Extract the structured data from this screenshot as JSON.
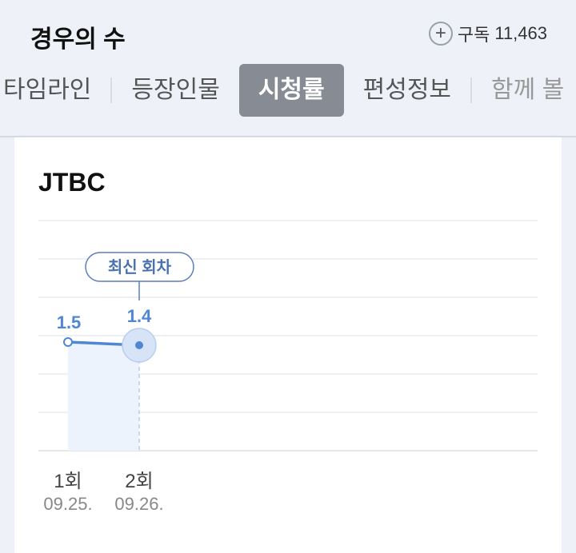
{
  "header": {
    "title": "경우의 수",
    "subscribe_label": "구독",
    "subscriber_count": "11,463",
    "subscribe_icon": "plus-circle-icon"
  },
  "tabs": [
    {
      "label": "타임라인"
    },
    {
      "label": "등장인물"
    },
    {
      "label": "시청률",
      "active": true
    },
    {
      "label": "편성정보"
    },
    {
      "label": "함께 볼"
    }
  ],
  "card": {
    "station": "JTBC",
    "latest_badge": "최신 회차"
  },
  "colors": {
    "accent": "#4f86d6",
    "active_tab": "#878b93",
    "background": "#eef2f8"
  },
  "chart_data": {
    "type": "line",
    "categories": [
      "1회",
      "2회"
    ],
    "dates": [
      "09.25.",
      "09.26."
    ],
    "values": [
      1.5,
      1.4
    ],
    "value_labels": [
      "1.5",
      "1.4"
    ],
    "grid": true,
    "annotation": "최신 회차"
  }
}
